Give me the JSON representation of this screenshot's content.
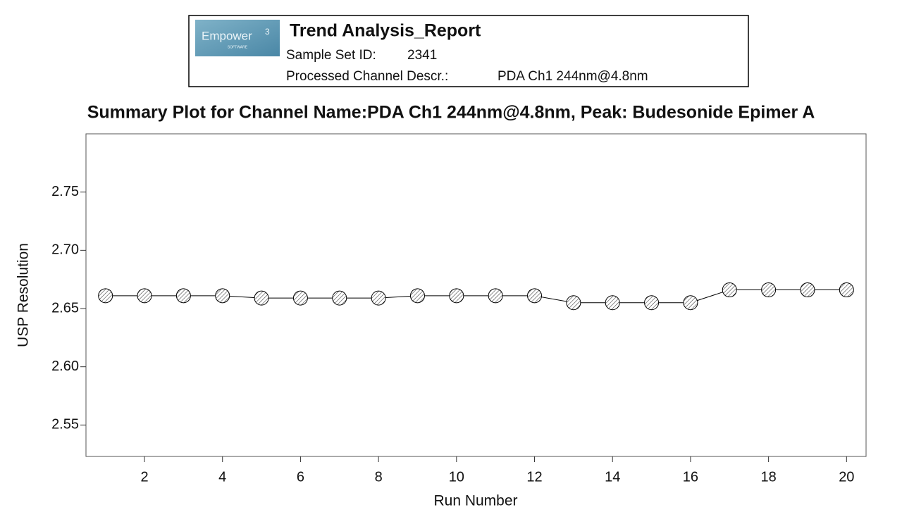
{
  "header": {
    "logo": {
      "name": "Empower",
      "version": "3",
      "subtitle": "SOFTWARE"
    },
    "title": "Trend Analysis_Report",
    "sample_set_label": "Sample Set ID:",
    "sample_set_value": "2341",
    "channel_label": "Processed Channel Descr.:",
    "channel_value": "PDA Ch1 244nm@4.8nm"
  },
  "chart_data": {
    "type": "line",
    "title": "Summary Plot for Channel Name:PDA Ch1 244nm@4.8nm, Peak: Budesonide Epimer A",
    "x_label": "Run Number",
    "y_label": "USP Resolution",
    "x": [
      1,
      2,
      3,
      4,
      5,
      6,
      7,
      8,
      9,
      10,
      11,
      12,
      13,
      14,
      15,
      16,
      17,
      18,
      19,
      20
    ],
    "values": [
      2.661,
      2.661,
      2.661,
      2.661,
      2.659,
      2.659,
      2.659,
      2.659,
      2.661,
      2.661,
      2.661,
      2.661,
      2.655,
      2.655,
      2.655,
      2.655,
      2.666,
      2.666,
      2.666,
      2.666
    ],
    "color": "#000000",
    "xlim": [
      0.5,
      20.5
    ],
    "xticks": [
      2,
      4,
      6,
      8,
      10,
      12,
      14,
      16,
      18,
      20
    ],
    "ylim": [
      2.523,
      2.8
    ],
    "yticks": [
      2.55,
      {
        "value": 2.6,
        "label": "2.60"
      },
      2.65,
      {
        "value": 2.7,
        "label": "2.70"
      },
      2.75
    ]
  }
}
